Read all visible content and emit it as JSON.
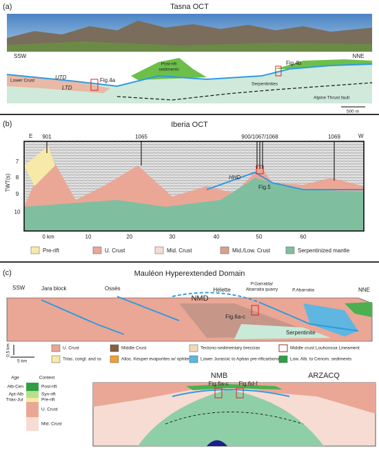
{
  "panel_a": {
    "label": "(a)",
    "title": "Tasna OCT",
    "ssw": "SSW",
    "nne": "NNE",
    "post_rift": [
      "Post-rift",
      "sediments"
    ],
    "fig4b": "Fig.4b",
    "lower_crust": "Lower Crust",
    "utd": "UTD",
    "ltd": "LTD",
    "fig4a": "Fig.4a",
    "serpentinites": "Serpentinites",
    "thrust": "Alpine Thrust fault",
    "scale": "500 m"
  },
  "panel_b": {
    "label": "(b)",
    "title": "Iberia OCT",
    "e": "E",
    "w": "W",
    "wells": [
      "901",
      "1065",
      "900/1067/1068",
      "1069"
    ],
    "y_label": "TWT(s)",
    "y_ticks": [
      "7",
      "8",
      "9",
      "10"
    ],
    "x_ticks": [
      "0 km",
      "10",
      "20",
      "30",
      "40",
      "50",
      "60"
    ],
    "hhd": "HHD",
    "fig5": "Fig.5",
    "legend": [
      "Pre-rift",
      "U. Crust",
      "Mid. Crust",
      "Mid./Low. Crust",
      "Serpentinized mantle"
    ]
  },
  "panel_c": {
    "label": "(c)",
    "title": "Mauléon Hyperextended Domain",
    "ssw": "SSW",
    "nne": "NNE",
    "jara": "Jara block",
    "osses": "Ossès",
    "nmd": "NMD",
    "helette": "Hélette",
    "garralda": [
      "P.Garralda/",
      "Abarratia quarry"
    ],
    "abarratia": "P.Abarratia",
    "fig6": "Fig.6a-c",
    "serpentinite": "Serpentinite",
    "vscale": "0.5 km",
    "hscale": "5 km",
    "legend": [
      "U. Crust",
      "Middle Crust",
      "Tectono-sedimentary breccias",
      "Middle crust Louhossoa Lineament",
      "Trias. congl. and ss",
      "Alloc. Keuper evaporites w/ ophites",
      "Lower Jurassic to Aptian pre-riftcarbonates",
      "Low. Alb. to Cenom. sediments"
    ],
    "column": {
      "age": "Age",
      "context": "Context",
      "ages": [
        "Alb-Cen",
        "Apt-Alb",
        "Trias-Jur"
      ],
      "contexts": [
        "Post-rift",
        "Syn-rift",
        "Pre-rift",
        "U. Crust",
        "Mid. Crust"
      ]
    },
    "nmb": "NMB",
    "arzacq": "ARZACQ",
    "fig6ac": "Fig.6a-c",
    "fig6df": "Fig.6d-f"
  }
}
